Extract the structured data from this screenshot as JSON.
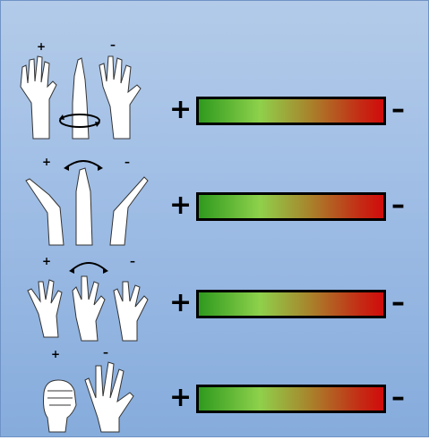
{
  "scale_plus_label": "+",
  "scale_minus_label": "–",
  "illus_plus_label": "+",
  "illus_minus_label": "–",
  "rows": [
    {
      "icon": "forearm-rotation-hands-icon"
    },
    {
      "icon": "wrist-deviation-hands-icon"
    },
    {
      "icon": "finger-spread-hands-icon"
    },
    {
      "icon": "fist-open-hand-icon"
    }
  ],
  "colors": {
    "bar_start": "#2f9a1e",
    "bar_mid": "#8ed14b",
    "bar_end": "#d10b0b",
    "background_top": "#b3cbe9",
    "background_bottom": "#86acdc"
  }
}
